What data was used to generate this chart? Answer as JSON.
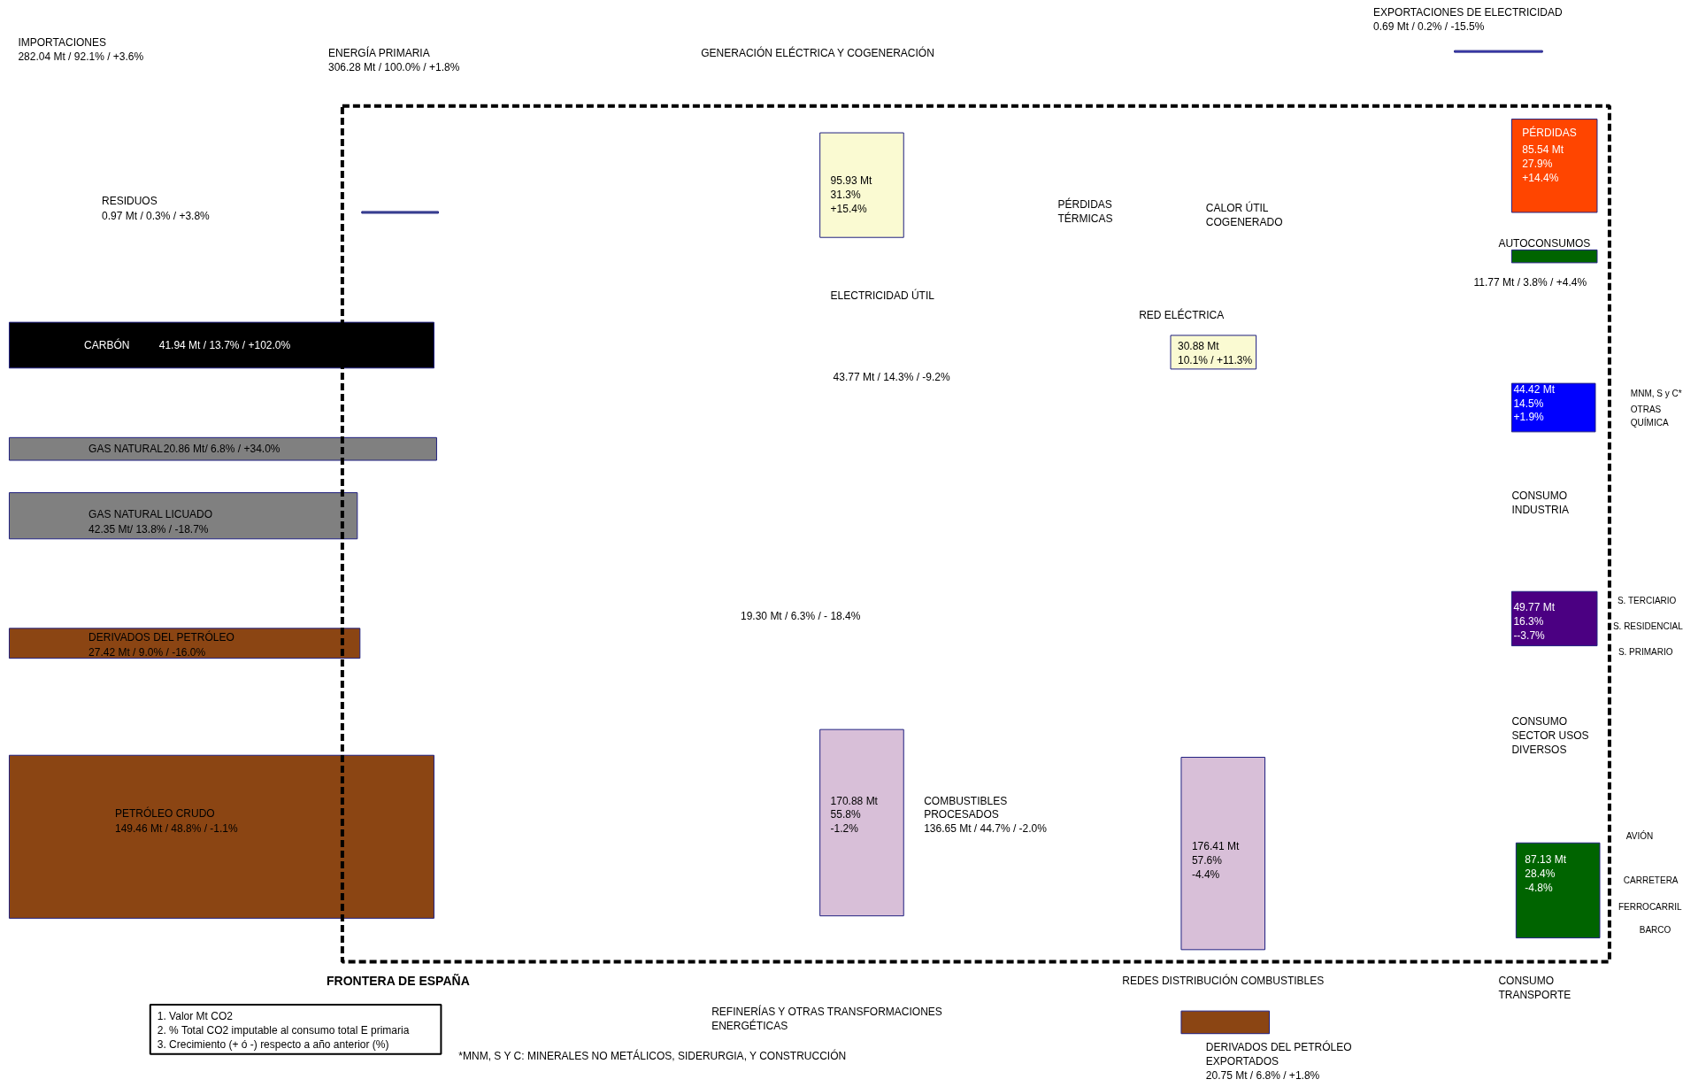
{
  "chart_data": {
    "type": "other",
    "categories": [
      "RESIDUOS",
      "CARBÓN",
      "GAS NATURAL",
      "GAS NATURAL LICUADO",
      "DERIVADOS DEL PETRÓLEO",
      "PETRÓLEO  CRUDO",
      "GENERACIÓN ELÉCTRICA Y COGENERACIÓN",
      "REFINERÍAS Y OTRAS TRANSFORMACIONES ENERGÉTICAS",
      "REDES DISTRIBUCIÓN COMBUSTIBLES",
      "RED ELÉCTRICA",
      "PÉRDIDAS",
      "AUTOCONSUMOS",
      "CONSUMO INDUSTRIA",
      "CONSUMO SECTOR USOS DIVERSOS",
      "CONSUMO TRANSPORTE",
      "EXPORTACIONES DE ELECTRICIDAD",
      "DERIVADOS DEL PETRÓLEO EXPORTADOS"
    ],
    "values": [
      0.97,
      41.94,
      20.86,
      42.35,
      27.42,
      149.46,
      95.93,
      170.88,
      176.41,
      30.88,
      85.54,
      11.77,
      44.42,
      49.77,
      87.13,
      0.69,
      20.75
    ],
    "value_labels": [
      "0.97 Mt / 0.3% / +3.8%",
      "41.94 Mt / 13.7% / +102.0%",
      "20.86 Mt/ 6.8% / +34.0%",
      "42.35 Mt/ 13.8% / -18.7%",
      "27.42 Mt / 9.0% / -16.0%",
      "149.46 Mt / 48.8% / -1.1%",
      "95.93 Mt\n31.3%\n+15.4%",
      "170.88 Mt\n55.8%\n-1.2%",
      "176.41 Mt\n57.6%\n-4.4%",
      "30.88 Mt\n10.1% / +11.3%",
      "85.54 Mt\n27.9%\n+14.4%",
      "11.77 Mt / 3.8% / +4.4%",
      "44.42 Mt\n14.5%\n+1.9%",
      "49.77 Mt\n16.3%\n--3.7%",
      "87.13 Mt\n28.4%\n-4.8%",
      "0.69 Mt / 0.2% / -15.5%",
      "20.75 Mt / 6.8% / +1.8%"
    ],
    "colors": [
      "#5060a0",
      "#000000",
      "#808080",
      "#808080",
      "#8b4513",
      "#8b4513",
      "#fafad2",
      "#d8bfd8",
      "#d8bfd8",
      "#fafad2",
      "#ff4500",
      "#006400",
      "#0000ff",
      "#4b0082",
      "#006400",
      "#4040c0",
      "#8b4513"
    ],
    "annotations": [
      "IMPORTACIONES\n282.04 Mt / 92.1% / +3.6%",
      "ENERGÍA PRIMARIA\n306.28 Mt / 100.0% / +1.8%",
      "43.77 Mt / 14.3% / -9.2%",
      "19.30 Mt / 6.3% / - 18.4%",
      "COMBUSTIBLES\nPROCESADOS\n136.65 Mt / 44.7% / -2.0%",
      "PÉRDIDAS\nTÉRMICAS",
      "CALOR ÚTIL\nCOGENERADO",
      "ELECTRICIDAD ÚTIL",
      "FRONTERA DE ESPAÑA",
      "MNM, S y C*",
      "OTRAS",
      "QUÍMICA",
      "S. TERCIARIO",
      "S. RESIDENCIAL",
      "S. PRIMARIO",
      "AVIÓN",
      "CARRETERA",
      "FERROCARRIL",
      "BARCO",
      "1. Valor  Mt CO2\n2. % Total CO2 imputable al consumo total E primaria\n3. Crecimiento (+ ó -) respecto a año anterior (%)",
      "*MNM, S Y C: MINERALES NO METÁLICOS, SIDERURGIA, Y CONSTRUCCIÓN"
    ]
  }
}
